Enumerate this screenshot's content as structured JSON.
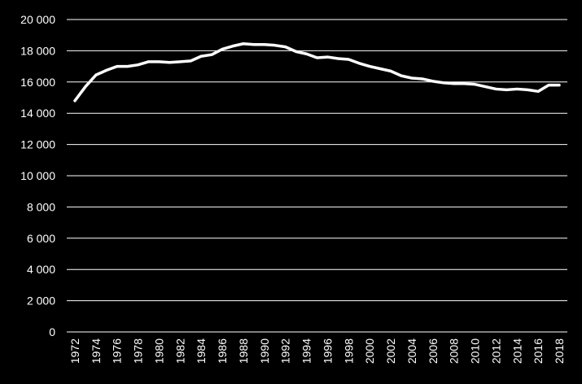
{
  "chart_data": {
    "type": "line",
    "title": "",
    "xlabel": "",
    "ylabel": "",
    "ylim": [
      0,
      20000
    ],
    "y_ticks": [
      "0",
      "2 000",
      "4 000",
      "6 000",
      "8 000",
      "10 000",
      "12 000",
      "14 000",
      "16 000",
      "18 000",
      "20 000"
    ],
    "x_ticks": [
      "1972",
      "1974",
      "1976",
      "1978",
      "1980",
      "1982",
      "1984",
      "1986",
      "1988",
      "1990",
      "1992",
      "1994",
      "1996",
      "1998",
      "2000",
      "2002",
      "2004",
      "2006",
      "2008",
      "2010",
      "2012",
      "2014",
      "2016",
      "2018"
    ],
    "grid": true,
    "legend": "none",
    "colors": {
      "background": "#000000",
      "line": "#ffffff",
      "grid": "#ffffff",
      "text": "#ffffff"
    },
    "series": [
      {
        "x": [
          1972,
          1973,
          1974,
          1975,
          1976,
          1977,
          1978,
          1979,
          1980,
          1981,
          1982,
          1983,
          1984,
          1985,
          1986,
          1987,
          1988,
          1989,
          1990,
          1991,
          1992,
          1993,
          1994,
          1995,
          1996,
          1997,
          1998,
          1999,
          2000,
          2001,
          2002,
          2003,
          2004,
          2005,
          2006,
          2007,
          2008,
          2009,
          2010,
          2011,
          2012,
          2013,
          2014,
          2015,
          2016,
          2017,
          2018
        ],
        "values": [
          14800,
          15700,
          16450,
          16750,
          17000,
          17000,
          17100,
          17300,
          17300,
          17250,
          17300,
          17350,
          17650,
          17750,
          18100,
          18300,
          18450,
          18400,
          18400,
          18350,
          18250,
          17950,
          17800,
          17550,
          17600,
          17500,
          17450,
          17200,
          17000,
          16850,
          16700,
          16400,
          16250,
          16200,
          16050,
          15950,
          15900,
          15900,
          15850,
          15700,
          15550,
          15500,
          15550,
          15500,
          15400,
          15800,
          15800
        ]
      }
    ]
  }
}
